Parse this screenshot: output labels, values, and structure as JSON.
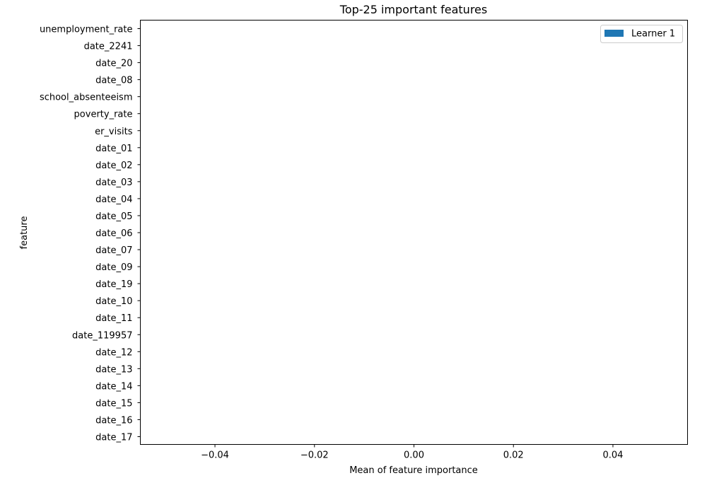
{
  "chart_data": {
    "type": "bar",
    "orientation": "horizontal",
    "title": "Top-25 important features",
    "xlabel": "Mean of feature importance",
    "ylabel": "feature",
    "xlim": [
      -0.055,
      0.055
    ],
    "xticks": [
      -0.04,
      -0.02,
      0.0,
      0.02,
      0.04
    ],
    "xtick_labels": [
      "−0.04",
      "−0.02",
      "0.00",
      "0.02",
      "0.04"
    ],
    "grid": false,
    "legend_position": "upper-right",
    "categories": [
      "unemployment_rate",
      "date_2241",
      "date_20",
      "date_08",
      "school_absenteeism",
      "poverty_rate",
      "er_visits",
      "date_01",
      "date_02",
      "date_03",
      "date_04",
      "date_05",
      "date_06",
      "date_07",
      "date_09",
      "date_19",
      "date_10",
      "date_11",
      "date_119957",
      "date_12",
      "date_13",
      "date_14",
      "date_15",
      "date_16",
      "date_17"
    ],
    "series": [
      {
        "name": "Learner 1",
        "color": "#1f77b4",
        "values": [
          0,
          0,
          0,
          0,
          0,
          0,
          0,
          0,
          0,
          0,
          0,
          0,
          0,
          0,
          0,
          0,
          0,
          0,
          0,
          0,
          0,
          0,
          0,
          0,
          0
        ]
      }
    ]
  }
}
